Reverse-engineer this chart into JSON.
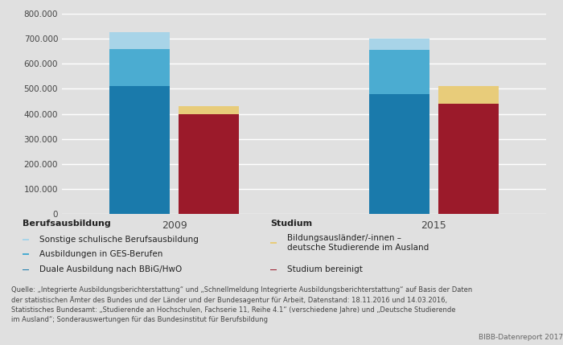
{
  "years": [
    "2009",
    "2015"
  ],
  "berufsausbildung": {
    "duale": [
      510000,
      480000
    ],
    "ges": [
      150000,
      175000
    ],
    "sonstige": [
      65000,
      45000
    ]
  },
  "studium": {
    "bereinigt": [
      400000,
      440000
    ],
    "auslaender": [
      30000,
      70000
    ]
  },
  "colors": {
    "duale": "#1a7aab",
    "ges": "#4bacd1",
    "sonstige": "#a8d4e8",
    "bereinigt": "#9b1a2a",
    "auslaender": "#e8cc7a"
  },
  "ylim": [
    0,
    800000
  ],
  "yticks": [
    0,
    100000,
    200000,
    300000,
    400000,
    500000,
    600000,
    700000,
    800000
  ],
  "bg_color": "#e0e0e0",
  "grid_color": "#ffffff",
  "legend_labels": {
    "berufsausbildung_title": "Berufsausbildung",
    "studium_title": "Studium",
    "sonstige": "Sonstige schulische Berufsausbildung",
    "ges": "Ausbildungen in GES-Berufen",
    "duale": "Duale Ausbildung nach BBiG/HwO",
    "auslaender": "Bildungsausländer/-innen –",
    "auslaender2": "deutsche Studierende im Ausland",
    "bereinigt": "Studium bereinigt"
  },
  "source_text": "Quelle: „Integrierte Ausbildungsberichterstattung“ und „Schnellmeldung Integrierte Ausbildungsberichterstattung“ auf Basis der Daten\nder statistischen Ämter des Bundes und der Länder und der Bundesagentur für Arbeit, Datenstand: 18.11.2016 und 14.03.2016,\nStatistisches Bundesamt: „Studierende an Hochschulen, Fachserie 11, Reihe 4.1“ (verschiedene Jahre) und „Deutsche Studierende\nim Ausland“; Sonderauswertungen für das Bundesinstitut für Berufsbildung",
  "bibb_text": "BIBB-Datenreport 2017",
  "bar_width": 0.35,
  "group_centers": [
    1.0,
    2.5
  ],
  "bar_gap": 0.05
}
